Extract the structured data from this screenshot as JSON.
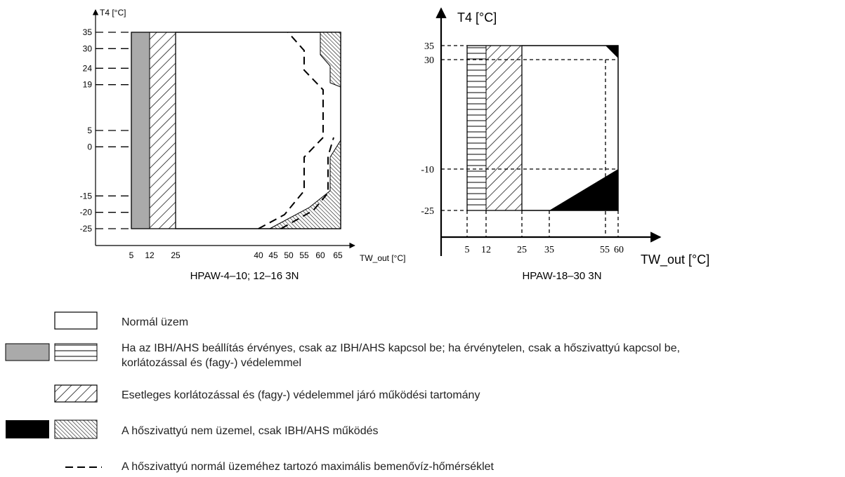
{
  "chart_data": [
    {
      "type": "area",
      "caption": "HPAW-4–10; 12–16 3N",
      "ylabel": "T4 [°C]",
      "xlabel": "TW_out [°C]",
      "y_ticks": [
        "35",
        "30",
        "24",
        "19",
        "5",
        "0",
        "-15",
        "-20",
        "-25"
      ],
      "x_ticks": [
        "5",
        "12",
        "25",
        "40",
        "45",
        "50",
        "55",
        "60",
        "65"
      ],
      "ylim": [
        -25,
        35
      ],
      "xlim": [
        5,
        65
      ],
      "regions": [
        {
          "legend": "ibh_only",
          "x": [
            5,
            12
          ],
          "y": [
            -25,
            35
          ]
        },
        {
          "legend": "limited",
          "x": [
            12,
            25
          ],
          "y": [
            -25,
            35
          ]
        },
        {
          "legend": "normal",
          "x": [
            25,
            65
          ],
          "y": [
            -25,
            35
          ]
        }
      ],
      "max_inlet_dashed_line": [
        [
          40,
          -25
        ],
        [
          45,
          -20
        ],
        [
          50,
          -15
        ],
        [
          55,
          0
        ],
        [
          55,
          5
        ],
        [
          55,
          19
        ],
        [
          55,
          24
        ],
        [
          50,
          30
        ],
        [
          50,
          35
        ]
      ]
    },
    {
      "type": "area",
      "caption": "HPAW-18–30 3N",
      "ylabel": "T4 [°C]",
      "xlabel": "TW_out [°C]",
      "y_ticks": [
        "35",
        "30",
        "-10",
        "-25"
      ],
      "x_ticks": [
        "5",
        "12",
        "25",
        "35",
        "55",
        "60"
      ],
      "ylim": [
        -25,
        35
      ],
      "xlim": [
        5,
        60
      ],
      "regions": [
        {
          "legend": "ibh_only",
          "x": [
            5,
            12
          ],
          "y": [
            -25,
            35
          ]
        },
        {
          "legend": "limited",
          "x": [
            12,
            25
          ],
          "y": [
            -25,
            35
          ]
        },
        {
          "legend": "normal",
          "x": [
            25,
            60
          ],
          "y": [
            -25,
            35
          ]
        },
        {
          "legend": "no_heatpump",
          "polygon": [
            [
              35,
              -25
            ],
            [
              60,
              -25
            ],
            [
              60,
              -10
            ]
          ]
        },
        {
          "legend": "no_heatpump",
          "polygon": [
            [
              57,
              35
            ],
            [
              60,
              35
            ],
            [
              60,
              32
            ]
          ]
        }
      ],
      "max_inlet_dashed_line": [
        [
          55,
          -25
        ],
        [
          55,
          30
        ]
      ]
    }
  ],
  "legend": {
    "normal": "Normál üzem",
    "ibh": "Ha az IBH/AHS beállítás érvényes, csak az IBH/AHS kapcsol be; ha érvénytelen, csak a hőszivattyú kapcsol be, korlátozással és (fagy-) védelemmel",
    "limited": "Esetleges korlátozással és (fagy-) védelemmel járó működési tartomány",
    "no_heatpump": "A hőszivattyú nem üzemel, csak IBH/AHS működés",
    "max_inlet": "A hőszivattyú normál üzeméhez tartozó maximális bemenővíz-hőmérséklet"
  },
  "colors": {
    "gray_fill": "#aaaaaa",
    "black_fill": "#000000",
    "legend_text": "#222222"
  }
}
